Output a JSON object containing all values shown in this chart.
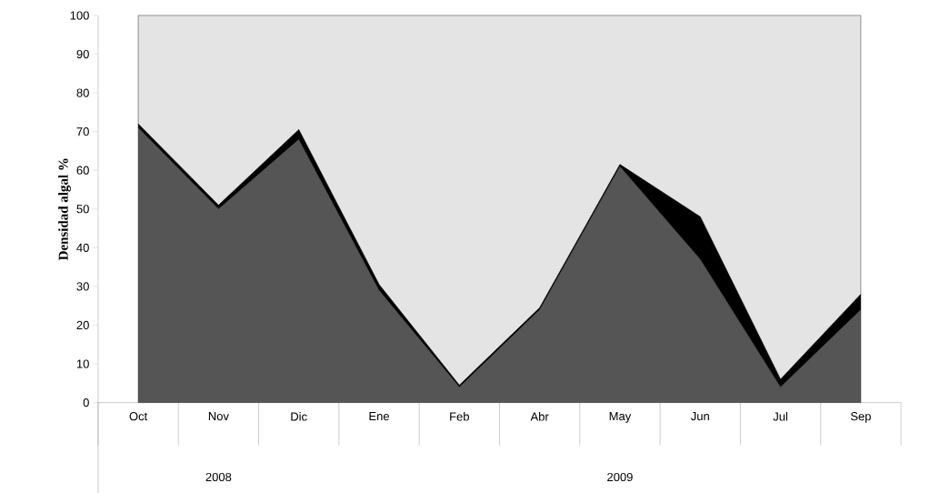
{
  "chart_data": {
    "type": "area",
    "stacked": true,
    "ylabel": "Densidad  algal %",
    "categories": [
      "Oct",
      "Nov",
      "Dic",
      "Ene",
      "Feb",
      "Abr",
      "May",
      "Jun",
      "Jul",
      "Sep"
    ],
    "series": [
      {
        "color": "#555555",
        "values": [
          71,
          50,
          68,
          29,
          4,
          24,
          61,
          37,
          4,
          24
        ]
      },
      {
        "color": "#000000",
        "values": [
          1,
          1,
          2.5,
          1.5,
          0.5,
          0.5,
          0.5,
          11,
          2,
          4
        ]
      },
      {
        "color": "#e4e4e4",
        "values": [
          28,
          49,
          29.5,
          69.5,
          95.5,
          75.5,
          38.5,
          52,
          94,
          72
        ]
      }
    ],
    "ylim": [
      0,
      100
    ],
    "yticks": [
      0,
      10,
      20,
      30,
      40,
      50,
      60,
      70,
      80,
      90,
      100
    ],
    "grid": false,
    "annotations": [
      "2008",
      "2009"
    ]
  }
}
